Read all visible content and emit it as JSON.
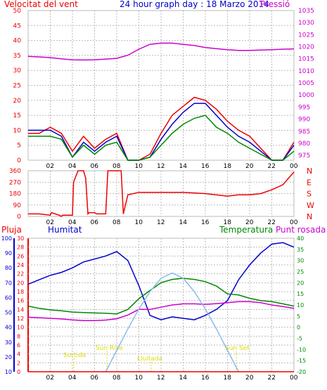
{
  "header": {
    "title": "24 hour graph day : 18 Marzo 2014",
    "left_label": "Velocitat del vent",
    "right_label": "Pressió"
  },
  "colors": {
    "red": "#ee0000",
    "blue": "#0000cc",
    "green": "#008800",
    "magenta": "#cc00cc",
    "lightblue": "#88bbee",
    "yellow": "#dddd00",
    "grid": "#bbbbbb"
  },
  "x_ticks": [
    "02",
    "04",
    "06",
    "08",
    "10",
    "12",
    "14",
    "16",
    "18",
    "20",
    "22",
    "00"
  ],
  "chart_data": [
    {
      "type": "line",
      "name": "wind_and_pressure",
      "y_left": {
        "label": "Velocitat del vent",
        "ticks": [
          0,
          5,
          10,
          15,
          20,
          25,
          30,
          35,
          40,
          45,
          50
        ],
        "range": [
          0,
          50
        ]
      },
      "y_right": {
        "label": "Pressió",
        "ticks": [
          975,
          980,
          985,
          990,
          995,
          1000,
          1005,
          1010,
          1015,
          1020,
          1025,
          1030,
          1035
        ],
        "range": [
          973,
          1035
        ]
      },
      "series": [
        {
          "color": "red",
          "axis": "left",
          "x": [
            0,
            1,
            2,
            3,
            4,
            5,
            6,
            7,
            8,
            9,
            10,
            11,
            12,
            13,
            14,
            15,
            16,
            17,
            18,
            19,
            20,
            21,
            22,
            23,
            24
          ],
          "values": [
            9,
            9,
            11,
            9,
            3,
            8,
            4,
            7,
            9,
            0,
            0,
            2,
            9,
            15,
            18,
            21,
            20,
            17,
            13,
            10,
            8,
            4,
            0,
            0,
            6
          ]
        },
        {
          "color": "blue",
          "axis": "left",
          "x": [
            0,
            1,
            2,
            3,
            4,
            5,
            6,
            7,
            8,
            9,
            10,
            11,
            12,
            13,
            14,
            15,
            16,
            17,
            18,
            19,
            20,
            21,
            22,
            23,
            24
          ],
          "values": [
            10,
            10,
            10,
            8,
            1,
            6,
            3,
            6,
            8,
            0,
            0,
            1,
            7,
            12,
            16,
            19,
            19,
            15,
            11,
            8,
            6,
            3,
            0,
            0,
            5
          ]
        },
        {
          "color": "green",
          "axis": "left",
          "x": [
            0,
            1,
            2,
            3,
            4,
            5,
            6,
            7,
            8,
            9,
            10,
            11,
            12,
            13,
            14,
            15,
            16,
            17,
            18,
            19,
            20,
            21,
            22,
            23,
            24
          ],
          "values": [
            8,
            8,
            8,
            7,
            1,
            5,
            2,
            5,
            6,
            0,
            0,
            1,
            5,
            9,
            12,
            14,
            15,
            11,
            9,
            6,
            4,
            2,
            0,
            0,
            3
          ]
        },
        {
          "color": "magenta",
          "axis": "right",
          "x": [
            0,
            1,
            2,
            3,
            4,
            5,
            6,
            7,
            8,
            9,
            10,
            11,
            12,
            13,
            14,
            15,
            16,
            17,
            18,
            19,
            20,
            21,
            22,
            23,
            24
          ],
          "values": [
            1016,
            1015.8,
            1015.5,
            1015,
            1014.6,
            1014.5,
            1014.6,
            1014.9,
            1015.2,
            1016.5,
            1019,
            1021,
            1021.5,
            1021.5,
            1021,
            1020.5,
            1019.7,
            1019.2,
            1018.8,
            1018.5,
            1018.5,
            1018.6,
            1018.8,
            1019,
            1019.1
          ]
        }
      ]
    },
    {
      "type": "line",
      "name": "wind_direction",
      "y_left": {
        "ticks": [
          0,
          90,
          180,
          270,
          360
        ],
        "range": [
          0,
          360
        ]
      },
      "y_right_labels": [
        "N",
        "W",
        "S",
        "E",
        "N"
      ],
      "series": [
        {
          "color": "red",
          "axis": "left",
          "x": [
            0,
            1,
            2,
            2.1,
            2.8,
            3,
            3.1,
            4,
            4.1,
            4.5,
            5,
            5.2,
            5.4,
            5.5,
            6,
            6.2,
            7,
            7.2,
            8,
            8.4,
            8.6,
            9,
            10,
            12,
            14,
            16,
            18,
            19,
            20,
            21,
            22,
            23,
            23.5,
            24
          ],
          "values": [
            20,
            20,
            10,
            30,
            10,
            0,
            10,
            10,
            270,
            360,
            360,
            300,
            20,
            30,
            30,
            20,
            20,
            360,
            360,
            360,
            20,
            170,
            190,
            190,
            190,
            180,
            160,
            170,
            170,
            180,
            210,
            250,
            300,
            350
          ]
        }
      ]
    },
    {
      "type": "line",
      "name": "rain_humidity_temperature",
      "y_rain": {
        "label": "Pluja",
        "ticks": [
          0,
          2,
          4,
          6,
          8,
          10,
          12,
          14,
          16,
          18,
          20,
          22,
          24,
          26,
          28,
          30
        ],
        "range": [
          0,
          30
        ]
      },
      "y_humidity": {
        "label": "Humitat",
        "ticks": [
          10,
          20,
          30,
          40,
          50,
          60,
          70,
          80,
          90,
          100
        ],
        "range": [
          10,
          100
        ]
      },
      "y_temperature": {
        "label": "Temperatura",
        "ticks": [
          -20,
          -15,
          -10,
          -5,
          0,
          5,
          10,
          15,
          20,
          25,
          30,
          35,
          40
        ],
        "range": [
          -20,
          40
        ]
      },
      "dew_point_label": "Punt rosada",
      "annotations": [
        "Sortida",
        "Sun Rise",
        "Lluitada",
        "Sun Set"
      ],
      "series": [
        {
          "color": "blue",
          "axis": "humidity",
          "x": [
            0,
            1,
            2,
            3,
            4,
            5,
            6,
            7,
            8,
            9,
            10,
            11,
            12,
            13,
            14,
            15,
            16,
            17,
            18,
            19,
            20,
            21,
            22,
            23,
            24
          ],
          "values": [
            69,
            72,
            75,
            77,
            80,
            84,
            86,
            88,
            91,
            85,
            68,
            48,
            45,
            47,
            46,
            45,
            48,
            52,
            58,
            72,
            82,
            90,
            96,
            97,
            94
          ]
        },
        {
          "color": "green",
          "axis": "temperature",
          "x": [
            0,
            1,
            2,
            3,
            4,
            5,
            6,
            7,
            8,
            9,
            10,
            11,
            12,
            13,
            14,
            15,
            16,
            17,
            18,
            19,
            20,
            21,
            22,
            23,
            24
          ],
          "values": [
            9.5,
            8.5,
            7.8,
            7.4,
            6.8,
            6.6,
            6.4,
            6.3,
            6.0,
            8,
            12.8,
            16.5,
            20,
            21.5,
            22,
            21.5,
            20.5,
            18.5,
            15,
            14.5,
            13,
            12,
            11.5,
            10.5,
            9.5
          ]
        },
        {
          "color": "magenta",
          "axis": "temperature",
          "x": [
            0,
            1,
            2,
            3,
            4,
            5,
            6,
            7,
            8,
            9,
            10,
            11,
            12,
            13,
            14,
            15,
            16,
            17,
            18,
            19,
            20,
            21,
            22,
            23,
            24
          ],
          "values": [
            4.5,
            4.3,
            4.0,
            3.7,
            3.3,
            3.0,
            3.0,
            3.2,
            3.8,
            5.5,
            8,
            8,
            9,
            10,
            10.5,
            10.5,
            10.3,
            10.6,
            11,
            11.5,
            11.5,
            11,
            10,
            9.3,
            8.5
          ]
        },
        {
          "color": "lightblue",
          "axis": "sun",
          "x": [
            7,
            8,
            9,
            10,
            11,
            12,
            13,
            14,
            15,
            16,
            17,
            18,
            19
          ],
          "values": [
            0,
            16,
            32,
            47,
            60,
            70,
            74,
            70,
            60,
            47,
            32,
            16,
            0
          ]
        },
        {
          "color": "red",
          "axis": "rain",
          "x": [
            0,
            24
          ],
          "values": [
            0,
            0
          ]
        }
      ]
    }
  ]
}
